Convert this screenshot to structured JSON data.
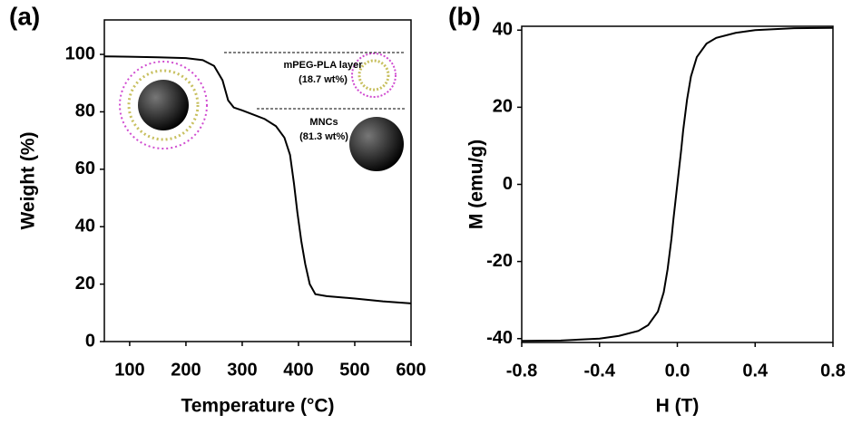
{
  "chart_data": [
    {
      "type": "line",
      "panel_label": "(a)",
      "x_label": "Temperature (°C)",
      "y_label": "Weight (%)",
      "x": [
        55,
        100,
        150,
        200,
        230,
        250,
        265,
        275,
        285,
        300,
        320,
        340,
        360,
        375,
        385,
        392,
        398,
        405,
        412,
        420,
        430,
        450,
        500,
        550,
        600
      ],
      "values": [
        99.3,
        99.2,
        99,
        98.7,
        98,
        96,
        91,
        84,
        81.5,
        80.5,
        79,
        77.5,
        75,
        71,
        65,
        55,
        45,
        35,
        27,
        20,
        16.5,
        15.8,
        15,
        14,
        13.3
      ],
      "color": "#000000",
      "xlim": [
        55,
        600
      ],
      "xticks": [
        100,
        200,
        300,
        400,
        500,
        600
      ],
      "ylim": [
        0,
        112
      ],
      "yticks": [
        0,
        20,
        40,
        60,
        80,
        100
      ],
      "annotations": [
        "mPEG-PLA layer",
        "(18.7 wt%)",
        "MNCs",
        "(81.3 wt%)"
      ]
    },
    {
      "type": "line",
      "panel_label": "(b)",
      "x_label": "H (T)",
      "y_label": "M (emu/g)",
      "x": [
        -0.8,
        -0.6,
        -0.4,
        -0.3,
        -0.2,
        -0.15,
        -0.1,
        -0.07,
        -0.05,
        -0.03,
        -0.02,
        -0.01,
        0,
        0.01,
        0.02,
        0.03,
        0.05,
        0.07,
        0.1,
        0.15,
        0.2,
        0.3,
        0.4,
        0.6,
        0.8
      ],
      "values": [
        -40.6,
        -40.5,
        -40,
        -39.3,
        -38,
        -36.5,
        -33,
        -28,
        -22,
        -14,
        -9,
        -4.5,
        0,
        4.5,
        9,
        14,
        22,
        28,
        33,
        36.5,
        38,
        39.3,
        40,
        40.5,
        40.6
      ],
      "color": "#000000",
      "xlim": [
        -0.8,
        0.8
      ],
      "xticks": [
        -0.8,
        -0.4,
        {
          "value": 0,
          "label": "0.0"
        },
        0.4,
        0.8
      ],
      "ylim": [
        -41,
        41
      ],
      "yticks": [
        -40,
        -20,
        0,
        20,
        40
      ]
    }
  ]
}
